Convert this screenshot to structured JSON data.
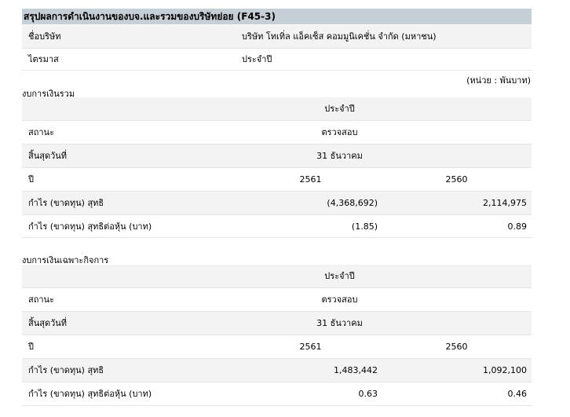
{
  "title": "สรุปผลการดำเนินงานของบจ.และรวมของบริษัทย่อย (F45-3)",
  "info": [
    {
      "label": "ชื่อบริษัท",
      "value": "บริษัท โทเทิ่ล แอ็คเซ็ส คอมมูนิเคชั่น จำกัด (มหาชน)"
    },
    {
      "label": "ไตรมาส",
      "value": "ประจำปี"
    }
  ],
  "unit": "(หน่วย : พันบาท)",
  "consolidated": {
    "heading": "งบการเงินรวม",
    "period": "ประจำปี",
    "status_label": "สถานะ",
    "status": "ตรวจสอบ",
    "end_label": "สิ้นสุดวันที่",
    "end": "31 ธันวาคม",
    "year_label": "ปี",
    "y1": "2561",
    "y2": "2560",
    "np_label": "กำไร (ขาดทุน) สุทธิ",
    "np1": "(4,368,692)",
    "np2": "2,114,975",
    "eps_label": "กำไร (ขาดทุน) สุทธิต่อหุ้น (บาท)",
    "eps1": "(1.85)",
    "eps2": "0.89"
  },
  "separate": {
    "heading": "งบการเงินเฉพาะกิจการ",
    "period": "ประจำปี",
    "status_label": "สถานะ",
    "status": "ตรวจสอบ",
    "end_label": "สิ้นสุดวันที่",
    "end": "31 ธันวาคม",
    "year_label": "ปี",
    "y1": "2561",
    "y2": "2560",
    "np_label": "กำไร (ขาดทุน) สุทธิ",
    "np1": "1,483,442",
    "np2": "1,092,100",
    "eps_label": "กำไร (ขาดทุน) สุทธิต่อหุ้น (บาท)",
    "eps1": "0.63",
    "eps2": "0.46"
  }
}
